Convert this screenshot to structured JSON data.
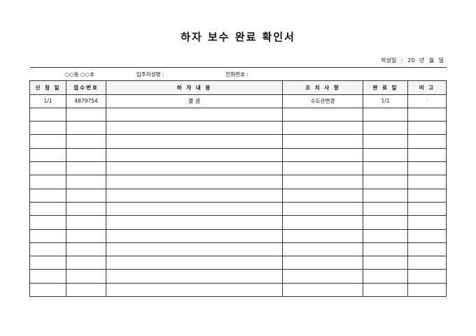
{
  "title": "하자 보수 완료 확인서",
  "date_line": "작성일 : 20   년   월   일",
  "info": {
    "unit": "○○동 ○○호",
    "resident_label": "입주자성명 :",
    "phone_label": "전화번호 :"
  },
  "headers": [
    "신 청 일",
    "접수번호",
    "하 자 내 용",
    "조 치 사 항",
    "완 료 일",
    "비 고"
  ],
  "rows": [
    [
      "1/1",
      "4879754",
      "물 샘",
      "수도관변경",
      "1/1",
      "·"
    ]
  ],
  "empty_rows": 14
}
